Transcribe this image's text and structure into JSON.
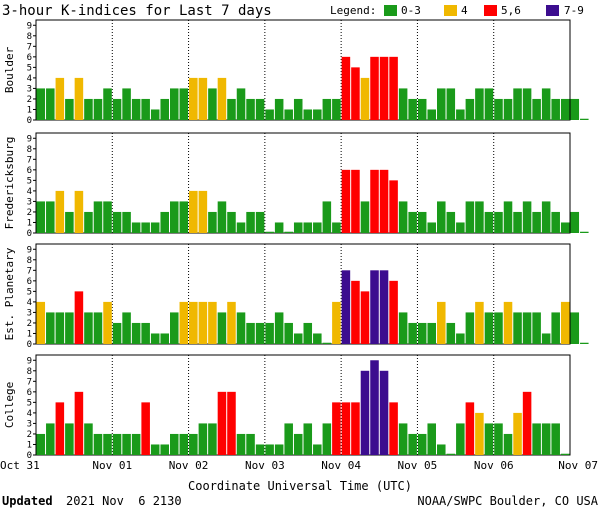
{
  "title": "3-hour K-indices for Last 7 days",
  "legend": {
    "label": "Legend:",
    "items": [
      {
        "label": "0-3",
        "color": "#1a9a1a"
      },
      {
        "label": "4",
        "color": "#f0b800"
      },
      {
        "label": "5,6",
        "color": "#ff0000"
      },
      {
        "label": "7-9",
        "color": "#3c0d8f"
      }
    ]
  },
  "xlabel": "Coordinate Universal Time (UTC)",
  "footer": {
    "updated_label": "Updated",
    "updated_value": "2021 Nov  6 2130",
    "source": "NOAA/SWPC Boulder, CO USA"
  },
  "chart_data": {
    "type": "bar",
    "intervals_per_day": 8,
    "x_tick_labels": [
      "Oct 31",
      "Nov 01",
      "Nov 02",
      "Nov 03",
      "Nov 04",
      "Nov 05",
      "Nov 06",
      "Nov 07"
    ],
    "y_ticks": [
      0,
      1,
      2,
      3,
      4,
      5,
      6,
      7,
      8,
      9
    ],
    "ylim": [
      0,
      9
    ],
    "color_scale": [
      {
        "range": "0-3",
        "color": "#1a9a1a"
      },
      {
        "range": "4",
        "color": "#f0b800"
      },
      {
        "range": "5,6",
        "color": "#ff0000"
      },
      {
        "range": "7-9",
        "color": "#3c0d8f"
      }
    ],
    "grid": false,
    "series": [
      {
        "name": "Boulder",
        "values": [
          3,
          3,
          4,
          2,
          4,
          2,
          2,
          3,
          2,
          3,
          2,
          2,
          1,
          2,
          3,
          3,
          4,
          4,
          3,
          4,
          2,
          3,
          2,
          2,
          1,
          2,
          1,
          2,
          1,
          1,
          2,
          2,
          6,
          5,
          4,
          6,
          6,
          6,
          3,
          2,
          2,
          1,
          3,
          3,
          1,
          2,
          3,
          3,
          2,
          2,
          3,
          3,
          2,
          3,
          2,
          2,
          2,
          0
        ]
      },
      {
        "name": "Fredericksburg",
        "values": [
          3,
          3,
          4,
          2,
          4,
          2,
          3,
          3,
          2,
          2,
          1,
          1,
          1,
          2,
          3,
          3,
          4,
          4,
          2,
          3,
          2,
          1,
          2,
          2,
          0,
          1,
          0,
          1,
          1,
          1,
          3,
          1,
          6,
          6,
          3,
          6,
          6,
          5,
          3,
          2,
          2,
          1,
          3,
          2,
          1,
          3,
          3,
          2,
          2,
          3,
          2,
          3,
          2,
          3,
          2,
          1,
          2,
          0
        ]
      },
      {
        "name": "Est. Planetary",
        "values": [
          4,
          3,
          3,
          3,
          5,
          3,
          3,
          4,
          2,
          3,
          2,
          2,
          1,
          1,
          3,
          4,
          4,
          4,
          4,
          3,
          4,
          3,
          2,
          2,
          2,
          3,
          2,
          1,
          2,
          1,
          0,
          4,
          7,
          6,
          5,
          7,
          7,
          6,
          3,
          2,
          2,
          2,
          4,
          2,
          1,
          3,
          4,
          3,
          3,
          4,
          3,
          3,
          3,
          1,
          3,
          4,
          3,
          0
        ]
      },
      {
        "name": "College",
        "values": [
          2,
          3,
          5,
          3,
          6,
          3,
          2,
          2,
          2,
          2,
          2,
          5,
          1,
          1,
          2,
          2,
          2,
          3,
          3,
          6,
          6,
          2,
          2,
          1,
          1,
          1,
          3,
          2,
          3,
          1,
          3,
          5,
          5,
          5,
          8,
          9,
          8,
          5,
          3,
          2,
          2,
          3,
          1,
          0,
          3,
          5,
          4,
          3,
          3,
          2,
          4,
          6,
          3,
          3,
          3,
          0
        ]
      }
    ]
  }
}
